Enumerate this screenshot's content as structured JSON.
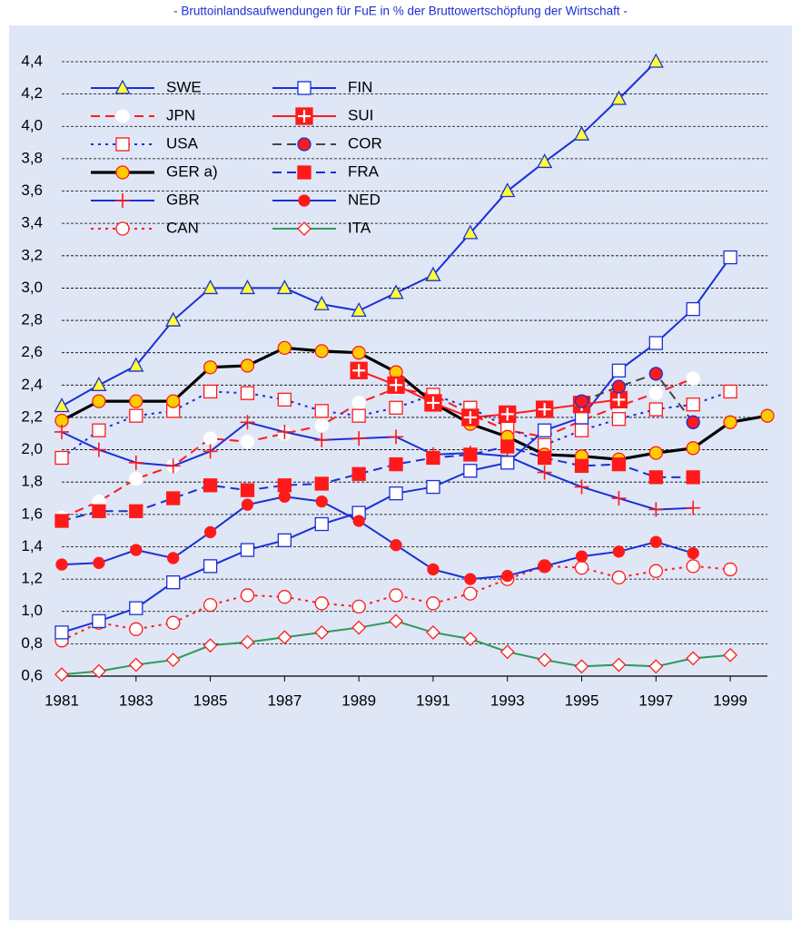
{
  "chart_data": {
    "type": "line",
    "title": "- Bruttoinlandsaufwendungen für FuE in % der Bruttowertschöpfung der Wirtschaft -",
    "x": [
      1981,
      1982,
      1983,
      1984,
      1985,
      1986,
      1987,
      1988,
      1989,
      1990,
      1991,
      1992,
      1993,
      1994,
      1995,
      1996,
      1997,
      1998,
      1999,
      2000
    ],
    "xlim": [
      1981,
      2000
    ],
    "xticks": [
      1981,
      1983,
      1985,
      1987,
      1989,
      1991,
      1993,
      1995,
      1997,
      1999
    ],
    "ylim": [
      0.6,
      4.4
    ],
    "yticks": [
      {
        "value": 0.6,
        "label": "0,6"
      },
      {
        "value": 0.8,
        "label": "0,8"
      },
      {
        "value": 1.0,
        "label": "1,0"
      },
      {
        "value": 1.2,
        "label": "1,2"
      },
      {
        "value": 1.4,
        "label": "1,4"
      },
      {
        "value": 1.6,
        "label": "1,6"
      },
      {
        "value": 1.8,
        "label": "1,8"
      },
      {
        "value": 2.0,
        "label": "2,0"
      },
      {
        "value": 2.2,
        "label": "2,2"
      },
      {
        "value": 2.4,
        "label": "2,4"
      },
      {
        "value": 2.6,
        "label": "2,6"
      },
      {
        "value": 2.8,
        "label": "2,8"
      },
      {
        "value": 3.0,
        "label": "3,0"
      },
      {
        "value": 3.2,
        "label": "3,2"
      },
      {
        "value": 3.4,
        "label": "3,4"
      },
      {
        "value": 3.6,
        "label": "3,6"
      },
      {
        "value": 3.8,
        "label": "3,8"
      },
      {
        "value": 4.0,
        "label": "4,0"
      },
      {
        "value": 4.2,
        "label": "4,2"
      },
      {
        "value": 4.4,
        "label": "4,4"
      }
    ],
    "grid": true,
    "legend": "top-left",
    "series": [
      {
        "name": "SWE",
        "color": "#1a2fd6",
        "marker": "triangle",
        "marker_fill": "#ffff33",
        "marker_stroke": "#1a2fd6",
        "dash": "solid",
        "values": [
          2.27,
          2.4,
          2.52,
          2.8,
          3.0,
          3.0,
          3.0,
          2.9,
          2.86,
          2.97,
          3.08,
          3.34,
          3.6,
          3.78,
          3.95,
          4.17,
          4.4,
          null,
          null,
          null
        ]
      },
      {
        "name": "JPN",
        "color": "#ff1a1a",
        "marker": "circle",
        "marker_fill": "#ffffff",
        "marker_stroke": "#ffffff",
        "dash": "dashed",
        "values": [
          1.58,
          1.68,
          1.82,
          1.9,
          2.07,
          2.05,
          2.1,
          2.15,
          2.29,
          2.38,
          2.34,
          2.22,
          2.12,
          2.08,
          2.18,
          2.27,
          2.35,
          2.44,
          null,
          null
        ]
      },
      {
        "name": "USA",
        "color": "#1a2fd6",
        "marker": "square",
        "marker_fill": "#ffffff",
        "marker_stroke": "#ff1a1a",
        "dash": "dotted",
        "values": [
          1.95,
          2.12,
          2.21,
          2.24,
          2.36,
          2.35,
          2.31,
          2.24,
          2.21,
          2.26,
          2.34,
          2.26,
          2.14,
          2.03,
          2.12,
          2.19,
          2.25,
          2.28,
          2.36,
          null
        ]
      },
      {
        "name": "GER a)",
        "color": "#000000",
        "marker": "circle",
        "marker_fill": "#ffcc00",
        "marker_stroke": "#ff1a1a",
        "dash": "thick",
        "values": [
          2.18,
          2.3,
          2.3,
          2.3,
          2.51,
          2.52,
          2.63,
          2.61,
          2.6,
          2.48,
          2.29,
          2.16,
          2.08,
          1.97,
          1.96,
          1.94,
          1.98,
          2.01,
          2.17,
          2.21
        ]
      },
      {
        "name": "GBR",
        "color": "#1a2fd6",
        "marker": "plus",
        "marker_fill": "none",
        "marker_stroke": "#ff1a1a",
        "dash": "solid",
        "values": [
          2.11,
          2.0,
          1.92,
          1.9,
          1.99,
          2.17,
          2.11,
          2.06,
          2.07,
          2.08,
          1.97,
          1.98,
          1.96,
          1.86,
          1.77,
          1.7,
          1.63,
          1.64,
          null,
          null
        ]
      },
      {
        "name": "CAN",
        "color": "#ff1a1a",
        "marker": "circle",
        "marker_fill": "#ffffff",
        "marker_stroke": "#ff1a1a",
        "dash": "dotted",
        "values": [
          0.82,
          0.93,
          0.89,
          0.93,
          1.04,
          1.1,
          1.09,
          1.05,
          1.03,
          1.1,
          1.05,
          1.11,
          1.2,
          1.28,
          1.27,
          1.21,
          1.25,
          1.28,
          1.26,
          null
        ]
      },
      {
        "name": "FIN",
        "color": "#1a2fd6",
        "marker": "square",
        "marker_fill": "#ffffff",
        "marker_stroke": "#1a2fd6",
        "dash": "solid",
        "values": [
          0.87,
          0.94,
          1.02,
          1.18,
          1.28,
          1.38,
          1.44,
          1.54,
          1.61,
          1.73,
          1.77,
          1.87,
          1.92,
          2.12,
          2.2,
          2.49,
          2.66,
          2.87,
          3.19,
          null
        ]
      },
      {
        "name": "SUI",
        "color": "#ff1a1a",
        "marker": "squarecross",
        "marker_fill": "#ff1a1a",
        "marker_stroke": "#ff1a1a",
        "dash": "solid",
        "values": [
          null,
          null,
          null,
          null,
          null,
          null,
          null,
          null,
          2.49,
          2.4,
          2.29,
          2.2,
          2.22,
          2.25,
          2.28,
          2.31,
          null,
          null,
          null,
          null
        ]
      },
      {
        "name": "COR",
        "color": "#444444",
        "marker": "circle",
        "marker_fill": "#ff1a1a",
        "marker_stroke": "#1a2fd6",
        "dash": "dashed",
        "values": [
          null,
          null,
          null,
          null,
          null,
          null,
          null,
          null,
          null,
          null,
          null,
          null,
          null,
          null,
          2.3,
          2.39,
          2.47,
          2.17,
          null,
          null
        ]
      },
      {
        "name": "FRA",
        "color": "#1a2fd6",
        "marker": "filledsquare",
        "marker_fill": "#ff1a1a",
        "marker_stroke": "#ff1a1a",
        "dash": "dashed",
        "values": [
          1.56,
          1.62,
          1.62,
          1.7,
          1.78,
          1.75,
          1.78,
          1.79,
          1.85,
          1.91,
          1.95,
          1.97,
          2.02,
          1.95,
          1.9,
          1.91,
          1.83,
          1.83,
          null,
          null
        ]
      },
      {
        "name": "NED",
        "color": "#1a2fd6",
        "marker": "dot",
        "marker_fill": "#ff1a1a",
        "marker_stroke": "#ff1a1a",
        "dash": "solid",
        "values": [
          1.29,
          1.3,
          1.38,
          1.33,
          1.49,
          1.66,
          1.71,
          1.68,
          1.56,
          1.41,
          1.26,
          1.2,
          1.22,
          1.28,
          1.34,
          1.37,
          1.43,
          1.36,
          null,
          null
        ]
      },
      {
        "name": "ITA",
        "color": "#2e9a5a",
        "marker": "diamond",
        "marker_fill": "#ffffff",
        "marker_stroke": "#ff1a1a",
        "dash": "solid",
        "values": [
          0.61,
          0.63,
          0.67,
          0.7,
          0.79,
          0.81,
          0.84,
          0.87,
          0.9,
          0.94,
          0.87,
          0.83,
          0.75,
          0.7,
          0.66,
          0.67,
          0.66,
          0.71,
          0.73,
          null
        ]
      }
    ]
  }
}
